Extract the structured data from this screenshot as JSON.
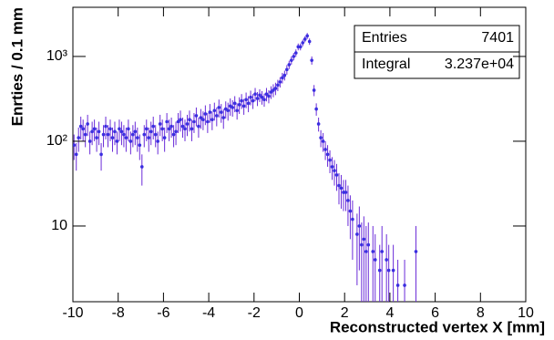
{
  "chart_data": {
    "type": "errorpoints",
    "xlabel": "Reconstructed vertex X [mm]",
    "ylabel": "Enrties / 0.1 mm",
    "log_y": true,
    "color": "#3a2ee0",
    "error_color": "#6a2bd8",
    "xlim": [
      -10,
      10
    ],
    "xticks": [
      -10,
      -8,
      -6,
      -4,
      -2,
      0,
      2,
      4,
      6,
      8,
      10
    ],
    "ylim": [
      1.28,
      3800
    ],
    "yticks": [
      10,
      {
        "value": 100,
        "label": "10²"
      },
      {
        "value": 1000,
        "label": "10³"
      }
    ],
    "x": [
      -9.95,
      -9.85,
      -9.75,
      -9.65,
      -9.55,
      -9.45,
      -9.35,
      -9.25,
      -9.15,
      -9.05,
      -8.95,
      -8.85,
      -8.75,
      -8.65,
      -8.55,
      -8.45,
      -8.35,
      -8.25,
      -8.15,
      -8.05,
      -7.95,
      -7.85,
      -7.75,
      -7.65,
      -7.55,
      -7.45,
      -7.35,
      -7.25,
      -7.15,
      -7.05,
      -6.95,
      -6.85,
      -6.75,
      -6.65,
      -6.55,
      -6.45,
      -6.35,
      -6.25,
      -6.15,
      -6.05,
      -5.95,
      -5.85,
      -5.75,
      -5.65,
      -5.55,
      -5.45,
      -5.35,
      -5.25,
      -5.15,
      -5.05,
      -4.95,
      -4.85,
      -4.75,
      -4.65,
      -4.55,
      -4.45,
      -4.35,
      -4.25,
      -4.15,
      -4.05,
      -3.95,
      -3.85,
      -3.75,
      -3.65,
      -3.55,
      -3.45,
      -3.35,
      -3.25,
      -3.15,
      -3.05,
      -2.95,
      -2.85,
      -2.75,
      -2.65,
      -2.55,
      -2.45,
      -2.35,
      -2.25,
      -2.15,
      -2.05,
      -1.95,
      -1.85,
      -1.75,
      -1.65,
      -1.55,
      -1.45,
      -1.35,
      -1.25,
      -1.15,
      -1.05,
      -0.95,
      -0.85,
      -0.75,
      -0.65,
      -0.55,
      -0.45,
      -0.35,
      -0.25,
      -0.15,
      -0.05,
      0.05,
      0.15,
      0.25,
      0.35,
      0.45,
      0.55,
      0.65,
      0.75,
      0.85,
      0.95,
      1.05,
      1.15,
      1.25,
      1.35,
      1.45,
      1.55,
      1.65,
      1.75,
      1.85,
      1.95,
      2.05,
      2.15,
      2.25,
      2.35,
      2.45,
      2.55,
      2.65,
      2.75,
      2.85,
      2.95,
      3.05,
      3.15,
      3.25,
      3.35,
      3.45,
      3.55,
      3.65,
      3.75,
      3.85,
      3.95,
      4.05,
      4.15,
      4.25,
      4.35,
      4.45,
      4.55,
      4.65,
      4.75,
      4.85,
      4.95,
      5.05,
      5.15
    ],
    "values": [
      90,
      70,
      110,
      150,
      140,
      120,
      160,
      100,
      130,
      140,
      110,
      130,
      70,
      120,
      150,
      120,
      140,
      110,
      130,
      100,
      140,
      130,
      120,
      110,
      140,
      100,
      120,
      130,
      110,
      90,
      50,
      120,
      140,
      110,
      130,
      150,
      120,
      100,
      160,
      140,
      110,
      170,
      140,
      150,
      120,
      130,
      170,
      180,
      150,
      140,
      160,
      180,
      140,
      170,
      200,
      150,
      190,
      180,
      210,
      170,
      220,
      180,
      230,
      200,
      250,
      220,
      190,
      240,
      230,
      260,
      250,
      280,
      230,
      270,
      300,
      260,
      310,
      280,
      330,
      300,
      360,
      320,
      350,
      330,
      310,
      360,
      340,
      380,
      400,
      420,
      460,
      500,
      560,
      600,
      700,
      800,
      900,
      1000,
      1100,
      1300,
      1300,
      1450,
      1600,
      1750,
      1500,
      900,
      400,
      240,
      160,
      110,
      100,
      80,
      70,
      60,
      50,
      45,
      40,
      30,
      28,
      25,
      25,
      20,
      15,
      12,
      null,
      8,
      10,
      6,
      7,
      5,
      6,
      null,
      5,
      4,
      null,
      3,
      5,
      null,
      4,
      3,
      null,
      3,
      null,
      2,
      null,
      null,
      2,
      null,
      null,
      null,
      null,
      5
    ],
    "errors": [
      30,
      25,
      35,
      45,
      40,
      35,
      45,
      30,
      40,
      40,
      35,
      40,
      25,
      35,
      45,
      35,
      40,
      35,
      40,
      30,
      40,
      40,
      35,
      35,
      40,
      30,
      35,
      40,
      35,
      30,
      20,
      35,
      40,
      35,
      40,
      45,
      35,
      30,
      45,
      40,
      35,
      45,
      40,
      40,
      35,
      40,
      45,
      50,
      40,
      40,
      45,
      50,
      40,
      45,
      50,
      40,
      50,
      45,
      55,
      45,
      55,
      45,
      55,
      50,
      60,
      55,
      50,
      55,
      55,
      60,
      55,
      60,
      50,
      60,
      60,
      55,
      65,
      60,
      65,
      60,
      65,
      60,
      60,
      60,
      55,
      65,
      60,
      65,
      70,
      70,
      70,
      70,
      80,
      80,
      90,
      90,
      100,
      100,
      110,
      120,
      120,
      130,
      130,
      140,
      130,
      100,
      60,
      40,
      30,
      25,
      25,
      20,
      20,
      18,
      15,
      15,
      14,
      12,
      12,
      10,
      10,
      10,
      8,
      8,
      null,
      6,
      7,
      5,
      6,
      5,
      5,
      null,
      5,
      4,
      null,
      3,
      5,
      null,
      4,
      3,
      null,
      3,
      null,
      2,
      null,
      null,
      2,
      null,
      null,
      null,
      null,
      5
    ],
    "stats": [
      {
        "label": "Entries",
        "value": 7401
      },
      {
        "label": "Integral",
        "value": "3.237e+04"
      }
    ]
  }
}
